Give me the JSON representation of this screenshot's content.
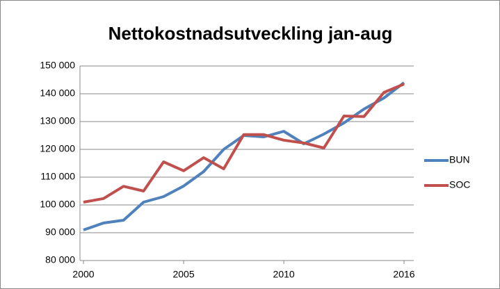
{
  "chart_data": {
    "type": "line",
    "title": "Nettokostnadsutveckling jan-aug",
    "x": [
      2000,
      2001,
      2002,
      2003,
      2004,
      2005,
      2006,
      2007,
      2008,
      2009,
      2010,
      2011,
      2012,
      2013,
      2014,
      2015,
      2016
    ],
    "series": [
      {
        "name": "BUN",
        "color": "#4f81bd",
        "values": [
          91000,
          93500,
          94500,
          101000,
          103000,
          106800,
          112000,
          120000,
          125000,
          124500,
          126500,
          122000,
          125500,
          129500,
          134500,
          138500,
          144000
        ]
      },
      {
        "name": "SOC",
        "color": "#c0504d",
        "values": [
          101000,
          102300,
          106700,
          105000,
          115500,
          112300,
          117000,
          113000,
          125300,
          125300,
          123300,
          122300,
          120500,
          132000,
          131800,
          140500,
          143500
        ]
      }
    ],
    "xlim": [
      2000,
      2016
    ],
    "xticks": [
      2000,
      2005,
      2010,
      2016
    ],
    "ylim": [
      80000,
      150000
    ],
    "yticks": [
      {
        "value": 80000,
        "label": "80 000"
      },
      {
        "value": 90000,
        "label": "90 000"
      },
      {
        "value": 100000,
        "label": "100 000"
      },
      {
        "value": 110000,
        "label": "110 000"
      },
      {
        "value": 120000,
        "label": "120 000"
      },
      {
        "value": 130000,
        "label": "130 000"
      },
      {
        "value": 140000,
        "label": "140 000"
      },
      {
        "value": 150000,
        "label": "150 000"
      }
    ],
    "grid": true,
    "legend": "right"
  }
}
